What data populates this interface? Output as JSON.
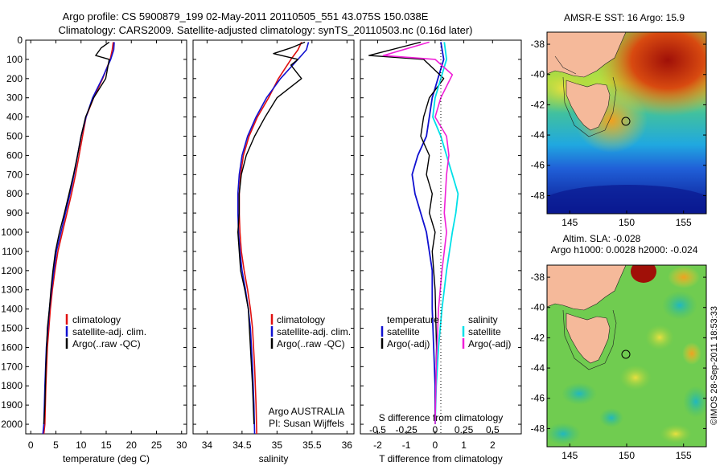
{
  "header": {
    "line1": "Argo profile: CS 5900879_199 02-May-2011 20110505_551 43.075S 150.038E",
    "line2": "Climatology: CARS2009. Satellite-adjusted climatology: synTS_20110503.nc (0.16d later)"
  },
  "colors": {
    "climatology": "#e01010",
    "satellite": "#1010d0",
    "argo": "#000000",
    "satellite_diff_s": "#00e0e8",
    "argo_diff_s": "#f020d8",
    "land": "#f5b99a"
  },
  "chart_data": [
    {
      "type": "line",
      "name": "temperature-panel",
      "xlabel": "temperature (deg C)",
      "xlim": [
        -1,
        31
      ],
      "xticks": [
        0,
        5,
        10,
        15,
        20,
        25,
        30
      ],
      "ylim": [
        2050,
        0
      ],
      "yticks": [
        0,
        100,
        200,
        300,
        400,
        500,
        600,
        700,
        800,
        900,
        1000,
        1100,
        1200,
        1300,
        1400,
        1500,
        1600,
        1700,
        1800,
        1900,
        2000
      ],
      "legend": [
        "climatology",
        "satellite-adj. clim.",
        "Argo(..raw -QC)"
      ],
      "legend_position": "lower-right",
      "series": [
        {
          "name": "climatology",
          "x": [
            16.4,
            16.2,
            15.8,
            14.3,
            12.5,
            11.0,
            10.3,
            9.6,
            8.9,
            8.1,
            7.2,
            6.3,
            5.4,
            4.8,
            4.3,
            3.9,
            3.6,
            3.3,
            3.0,
            2.8,
            2.6
          ],
          "y": [
            10,
            50,
            100,
            200,
            300,
            400,
            500,
            600,
            700,
            800,
            900,
            1000,
            1100,
            1200,
            1300,
            1400,
            1500,
            1600,
            1800,
            2000,
            2050
          ]
        },
        {
          "name": "satellite-adj. clim.",
          "x": [
            16.6,
            16.5,
            15.9,
            14.2,
            12.3,
            11.0,
            10.0,
            9.3,
            8.6,
            7.8,
            6.9,
            6.0,
            5.1,
            4.6,
            4.1,
            3.7,
            3.4,
            3.1,
            2.8,
            2.6,
            2.4
          ],
          "y": [
            10,
            50,
            100,
            200,
            300,
            400,
            500,
            600,
            700,
            800,
            900,
            1000,
            1100,
            1200,
            1300,
            1400,
            1500,
            1600,
            1800,
            2000,
            2050
          ]
        },
        {
          "name": "Argo(..raw -QC)",
          "x": [
            15.6,
            14.0,
            12.9,
            15.6,
            14.9,
            12.5,
            10.9,
            10.0,
            9.3,
            8.5,
            7.6,
            6.7,
            5.7,
            4.9,
            4.4,
            4.0,
            3.7,
            3.3,
            3.0,
            2.8,
            2.6
          ],
          "y": [
            10,
            40,
            80,
            100,
            200,
            300,
            400,
            500,
            600,
            700,
            800,
            900,
            1000,
            1100,
            1200,
            1300,
            1400,
            1500,
            1700,
            1900,
            2000
          ]
        }
      ]
    },
    {
      "type": "line",
      "name": "salinity-panel",
      "xlabel": "salinity",
      "xlim": [
        33.8,
        36.1
      ],
      "xticks": [
        34,
        34.5,
        35,
        35.5,
        36
      ],
      "ylim": [
        2050,
        0
      ],
      "legend": [
        "climatology",
        "satellite-adj. clim.",
        "Argo(..raw -QC)"
      ],
      "legend_position": "lower-right",
      "annotation": [
        "Argo AUSTRALIA",
        "PI: Susan Wijffels"
      ],
      "series": [
        {
          "name": "climatology",
          "x": [
            35.35,
            35.3,
            35.2,
            35.02,
            34.88,
            34.72,
            34.6,
            34.52,
            34.48,
            34.46,
            34.46,
            34.47,
            34.49,
            34.53,
            34.58,
            34.62,
            34.65,
            34.68,
            34.7,
            34.71
          ],
          "y": [
            10,
            50,
            100,
            200,
            300,
            400,
            500,
            600,
            700,
            800,
            900,
            1000,
            1100,
            1200,
            1300,
            1400,
            1500,
            1700,
            1900,
            2050
          ]
        },
        {
          "name": "satellite-adj. clim.",
          "x": [
            35.45,
            35.42,
            35.3,
            35.05,
            34.85,
            34.7,
            34.58,
            34.5,
            34.46,
            34.44,
            34.44,
            34.45,
            34.47,
            34.5,
            34.55,
            34.59,
            34.62,
            34.65,
            34.67,
            34.68
          ],
          "y": [
            10,
            50,
            100,
            200,
            300,
            400,
            500,
            600,
            700,
            800,
            900,
            1000,
            1100,
            1200,
            1300,
            1400,
            1500,
            1700,
            1900,
            2050
          ]
        },
        {
          "name": "Argo(..raw -QC)",
          "x": [
            35.4,
            35.2,
            34.95,
            35.3,
            35.2,
            35.35,
            35.0,
            34.83,
            34.68,
            34.56,
            34.49,
            34.46,
            34.46,
            34.44,
            34.46,
            34.48,
            34.54,
            34.59,
            34.62,
            34.65,
            34.67
          ],
          "y": [
            10,
            40,
            70,
            100,
            130,
            200,
            300,
            400,
            500,
            600,
            700,
            800,
            900,
            1000,
            1100,
            1200,
            1300,
            1400,
            1600,
            1800,
            2000
          ]
        }
      ]
    },
    {
      "type": "line",
      "name": "difference-panel",
      "xlabel": "T difference from climatology",
      "xlabel_top": "S difference from climatology",
      "xlim": [
        -2.6,
        3.0
      ],
      "xticks_T": [
        -2,
        -1,
        0,
        1,
        2
      ],
      "xticks_S": [
        -0.5,
        -0.25,
        0,
        0.25,
        0.5
      ],
      "ylim": [
        2050,
        0
      ],
      "legend": [
        "temperature",
        "satellite",
        "Argo(-adj)",
        "salinity",
        "satellite",
        "Argo(-adj)"
      ],
      "legend_position": "lower-center",
      "series": [
        {
          "name": "temperature satellite",
          "x": [
            0.2,
            0.3,
            0.1,
            -0.1,
            -0.2,
            -0.3,
            -0.6,
            -0.8,
            -0.7,
            -0.5,
            -0.3,
            -0.2,
            -0.1,
            -0.1,
            -0.05,
            0,
            0
          ],
          "y": [
            10,
            100,
            200,
            300,
            400,
            500,
            600,
            700,
            800,
            900,
            1000,
            1100,
            1200,
            1400,
            1600,
            1800,
            2000
          ]
        },
        {
          "name": "temperature Argo(-adj)",
          "x": [
            -0.5,
            -2.3,
            -0.4,
            0.3,
            -0.2,
            -0.4,
            -0.5,
            -0.2,
            -0.3,
            -0.1,
            -0.2,
            0,
            -0.1,
            0,
            0.05,
            0
          ],
          "y": [
            10,
            80,
            100,
            200,
            300,
            400,
            500,
            600,
            700,
            800,
            900,
            1000,
            1100,
            1300,
            1600,
            2000
          ]
        },
        {
          "name": "salinity satellite",
          "x": [
            0.08,
            0.1,
            0.05,
            0.0,
            -0.02,
            0.05,
            0.1,
            0.15,
            0.2,
            0.18,
            0.15,
            0.1,
            0.06,
            0.03,
            0.01,
            0
          ],
          "y": [
            10,
            100,
            200,
            300,
            400,
            500,
            600,
            700,
            800,
            900,
            1000,
            1200,
            1400,
            1600,
            1800,
            2000
          ]
        },
        {
          "name": "salinity Argo(-adj)",
          "x": [
            -0.05,
            -0.45,
            0.0,
            0.15,
            0.05,
            0.0,
            0.1,
            0.12,
            0.1,
            0.08,
            0.1,
            0.06,
            0.03,
            0.01,
            0
          ],
          "y": [
            10,
            80,
            100,
            180,
            300,
            400,
            500,
            600,
            700,
            900,
            1000,
            1200,
            1400,
            1700,
            2000
          ]
        }
      ]
    },
    {
      "type": "heatmap",
      "name": "sst-map",
      "title": "AMSR-E SST: 16 Argo: 15.9",
      "xlim": [
        143,
        157
      ],
      "ylim": [
        -49.2,
        -37.2
      ],
      "xticks": [
        145,
        150,
        155
      ],
      "yticks": [
        -38,
        -40,
        -42,
        -44,
        -46,
        -48
      ],
      "marker": {
        "lon": 150.038,
        "lat": -43.075
      }
    },
    {
      "type": "heatmap",
      "name": "sla-map",
      "title_line1": "Altim. SLA: -0.028",
      "title_line2": "Argo h1000: 0.0028 h2000: -0.024",
      "xlim": [
        143,
        157
      ],
      "ylim": [
        -49.2,
        -37.2
      ],
      "xticks": [
        145,
        150,
        155
      ],
      "yticks": [
        -38,
        -40,
        -42,
        -44,
        -46,
        -48
      ],
      "marker": {
        "lon": 150.038,
        "lat": -43.075
      }
    }
  ],
  "footer": {
    "credit": "©IMOS 28-Sep-2011 18:53:33"
  }
}
